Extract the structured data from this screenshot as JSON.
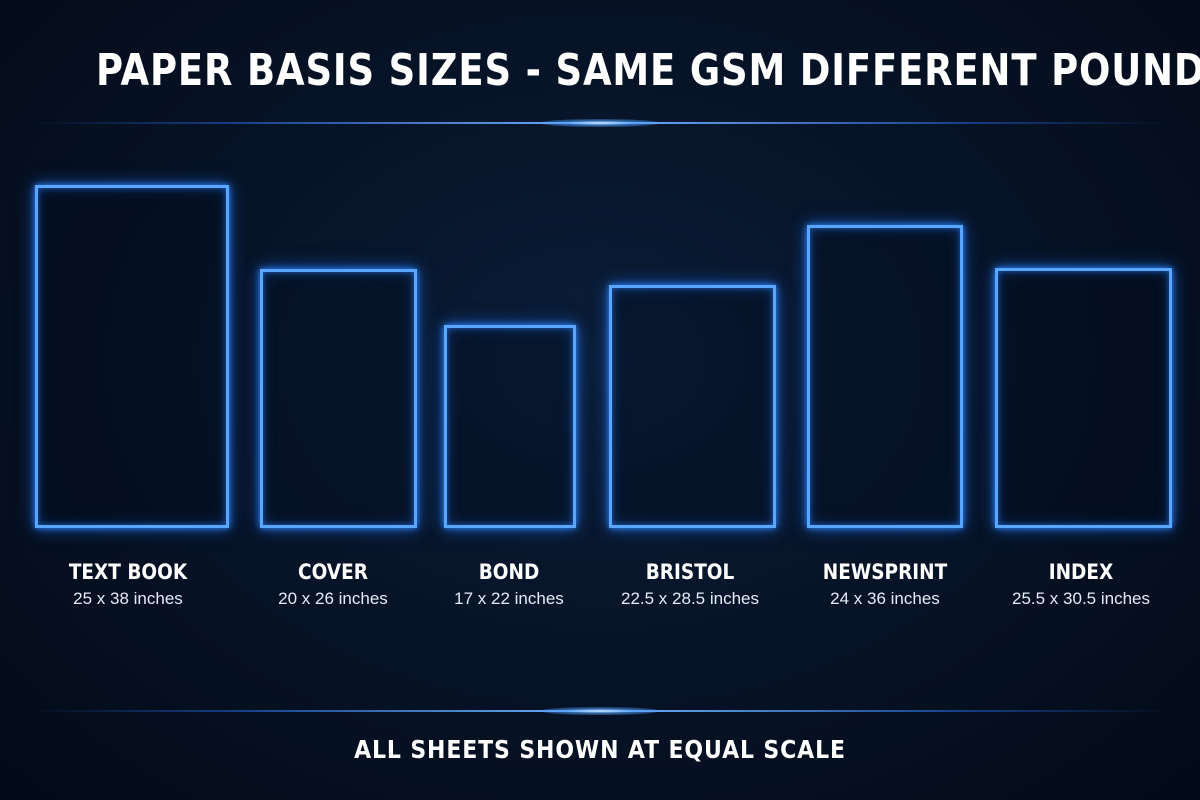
{
  "title": "PAPER BASIS SIZES - SAME GSM DIFFERENT POUNDS",
  "sheets": [
    {
      "name": "TEXT BOOK",
      "size": "25 x 38 inches"
    },
    {
      "name": "COVER",
      "size": "20 x 26 inches"
    },
    {
      "name": "BOND",
      "size": "17 x 22 inches"
    },
    {
      "name": "BRISTOL",
      "size": "22.5 x 28.5 inches"
    },
    {
      "name": "NEWSPRINT",
      "size": "24 x 36 inches"
    },
    {
      "name": "INDEX",
      "size": "25.5 x 30.5 inches"
    }
  ],
  "footer": "ALL SHEETS SHOWN AT EQUAL SCALE",
  "colors": {
    "background": "#061226",
    "outline": "#5aa6ff",
    "glow": "#2f86ff",
    "text": "#ffffff"
  }
}
